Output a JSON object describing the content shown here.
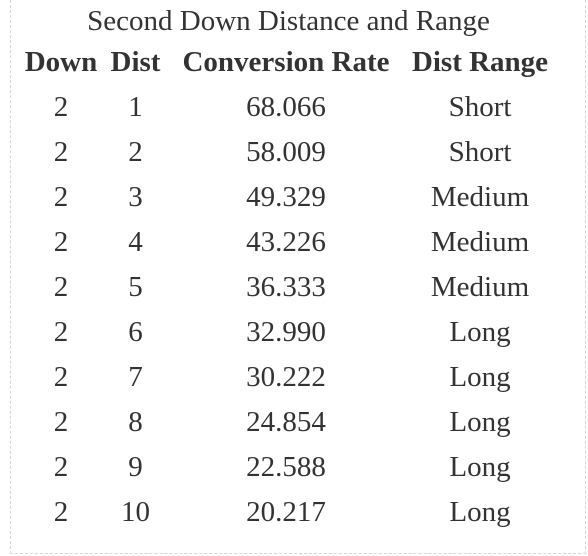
{
  "table": {
    "caption": "Second Down Distance and Range",
    "headers": {
      "down": "Down",
      "dist": "Dist",
      "rate": "Conversion Rate",
      "range": "Dist Range"
    },
    "rows": [
      {
        "down": "2",
        "dist": "1",
        "rate": "68.066",
        "range": "Short"
      },
      {
        "down": "2",
        "dist": "2",
        "rate": "58.009",
        "range": "Short"
      },
      {
        "down": "2",
        "dist": "3",
        "rate": "49.329",
        "range": "Medium"
      },
      {
        "down": "2",
        "dist": "4",
        "rate": "43.226",
        "range": "Medium"
      },
      {
        "down": "2",
        "dist": "5",
        "rate": "36.333",
        "range": "Medium"
      },
      {
        "down": "2",
        "dist": "6",
        "rate": "32.990",
        "range": "Long"
      },
      {
        "down": "2",
        "dist": "7",
        "rate": "30.222",
        "range": "Long"
      },
      {
        "down": "2",
        "dist": "8",
        "rate": "24.854",
        "range": "Long"
      },
      {
        "down": "2",
        "dist": "9",
        "rate": "22.588",
        "range": "Long"
      },
      {
        "down": "2",
        "dist": "10",
        "rate": "20.217",
        "range": "Long"
      }
    ]
  },
  "colors": {
    "text": "#333333",
    "frame_border": "#d6d6d6",
    "background": "#ffffff"
  }
}
